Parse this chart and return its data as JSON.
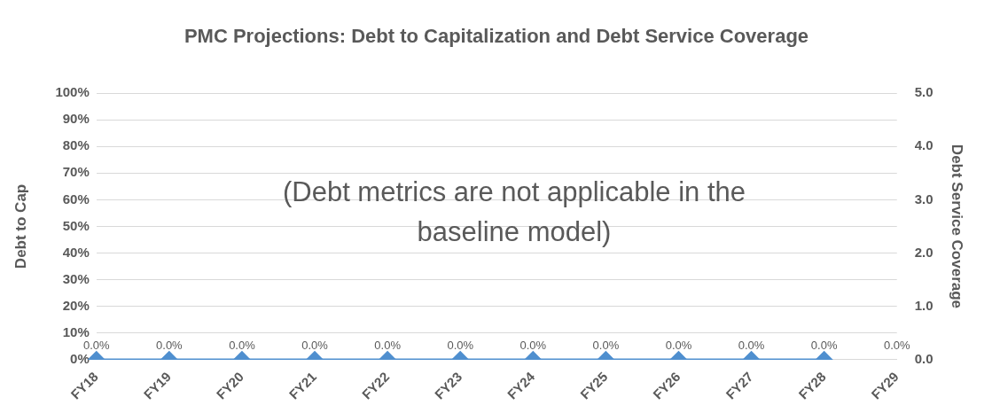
{
  "chart_data": {
    "type": "line",
    "title": "PMC Projections:   Debt to Capitalization  and Debt Service Coverage",
    "ylabel": "Debt to Cap",
    "y2label": "Debt Service Coverage",
    "annotations": [
      "(Debt metrics are not applicable in the baseline model)"
    ],
    "categories": [
      "FY18",
      "FY19",
      "FY20",
      "FY21",
      "FY22",
      "FY23",
      "FY24",
      "FY25",
      "FY26",
      "FY27",
      "FY28",
      "FY29"
    ],
    "series": [
      {
        "color": "#4f8fcf",
        "values": [
          0,
          0,
          0,
          0,
          0,
          0,
          0,
          0,
          0,
          0,
          0,
          null
        ],
        "value_labels": [
          "0.0%",
          "0.0%",
          "0.0%",
          "0.0%",
          "0.0%",
          "0.0%",
          "0.0%",
          "0.0%",
          "0.0%",
          "0.0%",
          "0.0%",
          "0.0%"
        ]
      }
    ],
    "ylim": [
      0,
      100
    ],
    "yticks": [
      {
        "value": 0,
        "label": "0%"
      },
      {
        "value": 10,
        "label": "10%"
      },
      {
        "value": 20,
        "label": "20%"
      },
      {
        "value": 30,
        "label": "30%"
      },
      {
        "value": 40,
        "label": "40%"
      },
      {
        "value": 50,
        "label": "50%"
      },
      {
        "value": 60,
        "label": "60%"
      },
      {
        "value": 70,
        "label": "70%"
      },
      {
        "value": 80,
        "label": "80%"
      },
      {
        "value": 90,
        "label": "90%"
      },
      {
        "value": 100,
        "label": "100%"
      }
    ],
    "y2lim": [
      0,
      5
    ],
    "y2ticks": [
      {
        "value": 0,
        "label": "0.0"
      },
      {
        "value": 1,
        "label": "1.0"
      },
      {
        "value": 2,
        "label": "2.0"
      },
      {
        "value": 3,
        "label": "3.0"
      },
      {
        "value": 4,
        "label": "4.0"
      },
      {
        "value": 5,
        "label": "5.0"
      }
    ],
    "grid": "y",
    "legend": false,
    "marker": "diamond",
    "line_style": "solid"
  }
}
